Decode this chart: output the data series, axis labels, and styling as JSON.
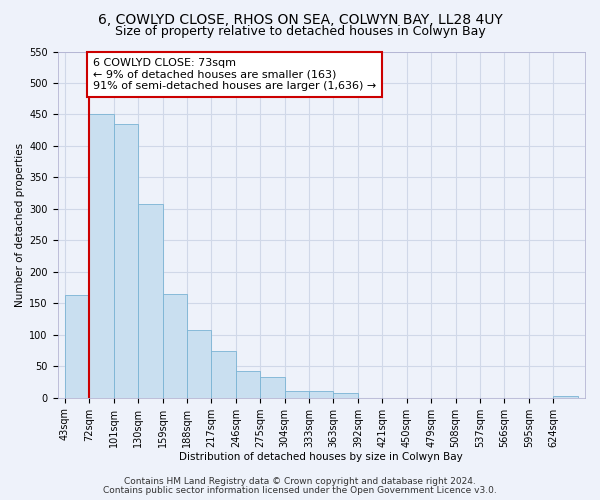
{
  "title": "6, COWLYD CLOSE, RHOS ON SEA, COLWYN BAY, LL28 4UY",
  "subtitle": "Size of property relative to detached houses in Colwyn Bay",
  "xlabel": "Distribution of detached houses by size in Colwyn Bay",
  "ylabel": "Number of detached properties",
  "bin_labels": [
    "43sqm",
    "72sqm",
    "101sqm",
    "130sqm",
    "159sqm",
    "188sqm",
    "217sqm",
    "246sqm",
    "275sqm",
    "304sqm",
    "333sqm",
    "363sqm",
    "392sqm",
    "421sqm",
    "450sqm",
    "479sqm",
    "508sqm",
    "537sqm",
    "566sqm",
    "595sqm",
    "624sqm"
  ],
  "bar_heights": [
    163,
    450,
    435,
    308,
    165,
    107,
    74,
    43,
    33,
    10,
    10,
    7,
    0,
    0,
    0,
    0,
    0,
    0,
    0,
    0,
    3
  ],
  "bar_color": "#c9dff0",
  "bar_edge_color": "#7ab3d4",
  "annotation_box_text": "6 COWLYD CLOSE: 73sqm\n← 9% of detached houses are smaller (163)\n91% of semi-detached houses are larger (1,636) →",
  "property_line_color": "#cc0000",
  "ylim": [
    0,
    550
  ],
  "yticks": [
    0,
    50,
    100,
    150,
    200,
    250,
    300,
    350,
    400,
    450,
    500,
    550
  ],
  "footer_line1": "Contains HM Land Registry data © Crown copyright and database right 2024.",
  "footer_line2": "Contains public sector information licensed under the Open Government Licence v3.0.",
  "bg_color": "#eef2fa",
  "grid_color": "#d0d8e8",
  "title_fontsize": 10,
  "subtitle_fontsize": 9,
  "annotation_fontsize": 8,
  "axis_fontsize": 7.5,
  "tick_fontsize": 7,
  "footer_fontsize": 6.5
}
